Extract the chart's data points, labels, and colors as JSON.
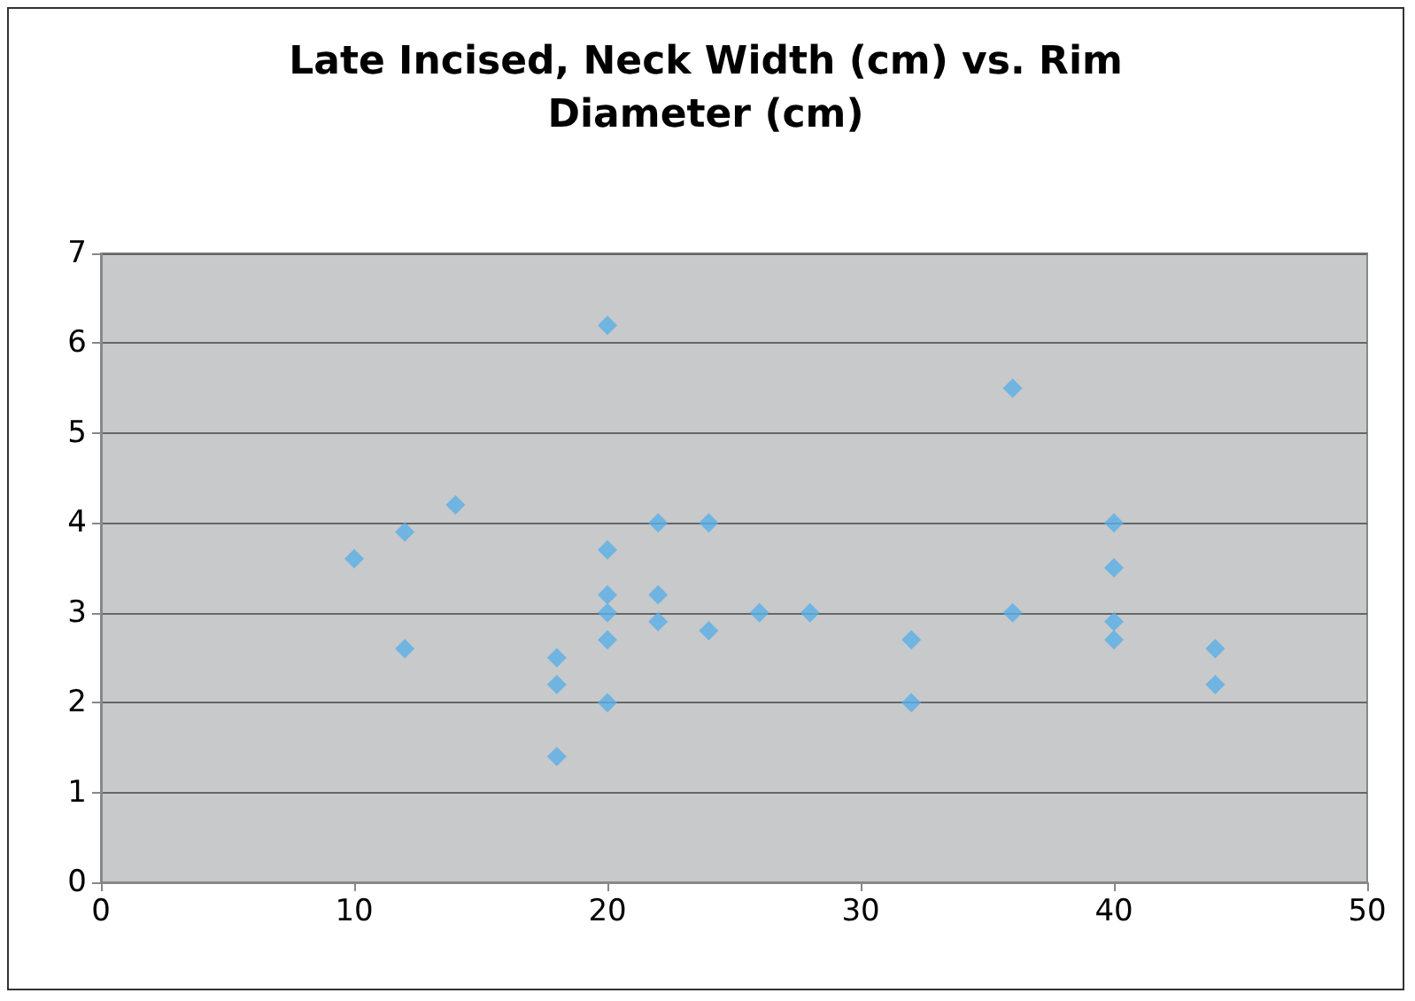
{
  "chart_data": {
    "type": "scatter",
    "title": "Late Incised, Neck Width (cm) vs. Rim\nDiameter (cm)",
    "x": [
      10,
      12,
      12,
      14,
      18,
      18,
      18,
      20,
      20,
      20,
      20,
      20,
      20,
      22,
      22,
      22,
      24,
      24,
      26,
      28,
      32,
      32,
      36,
      36,
      40,
      40,
      40,
      40,
      44,
      44
    ],
    "series": [
      {
        "color": "#5aafe6",
        "values": [
          3.6,
          3.9,
          2.6,
          4.2,
          2.5,
          2.2,
          1.4,
          6.2,
          3.7,
          3.2,
          3.0,
          2.7,
          2.0,
          4.0,
          3.2,
          2.9,
          4.0,
          2.8,
          3.0,
          3.0,
          2.7,
          2.0,
          5.5,
          3.0,
          4.0,
          3.5,
          2.9,
          2.7,
          2.6,
          2.2
        ]
      }
    ],
    "xlim": [
      0,
      50
    ],
    "xticks": [
      0,
      10,
      20,
      30,
      40,
      50
    ],
    "ylim": [
      0,
      7
    ],
    "yticks": [
      0,
      1,
      2,
      3,
      4,
      5,
      6,
      7
    ],
    "grid": "y",
    "marker": "diamond"
  }
}
